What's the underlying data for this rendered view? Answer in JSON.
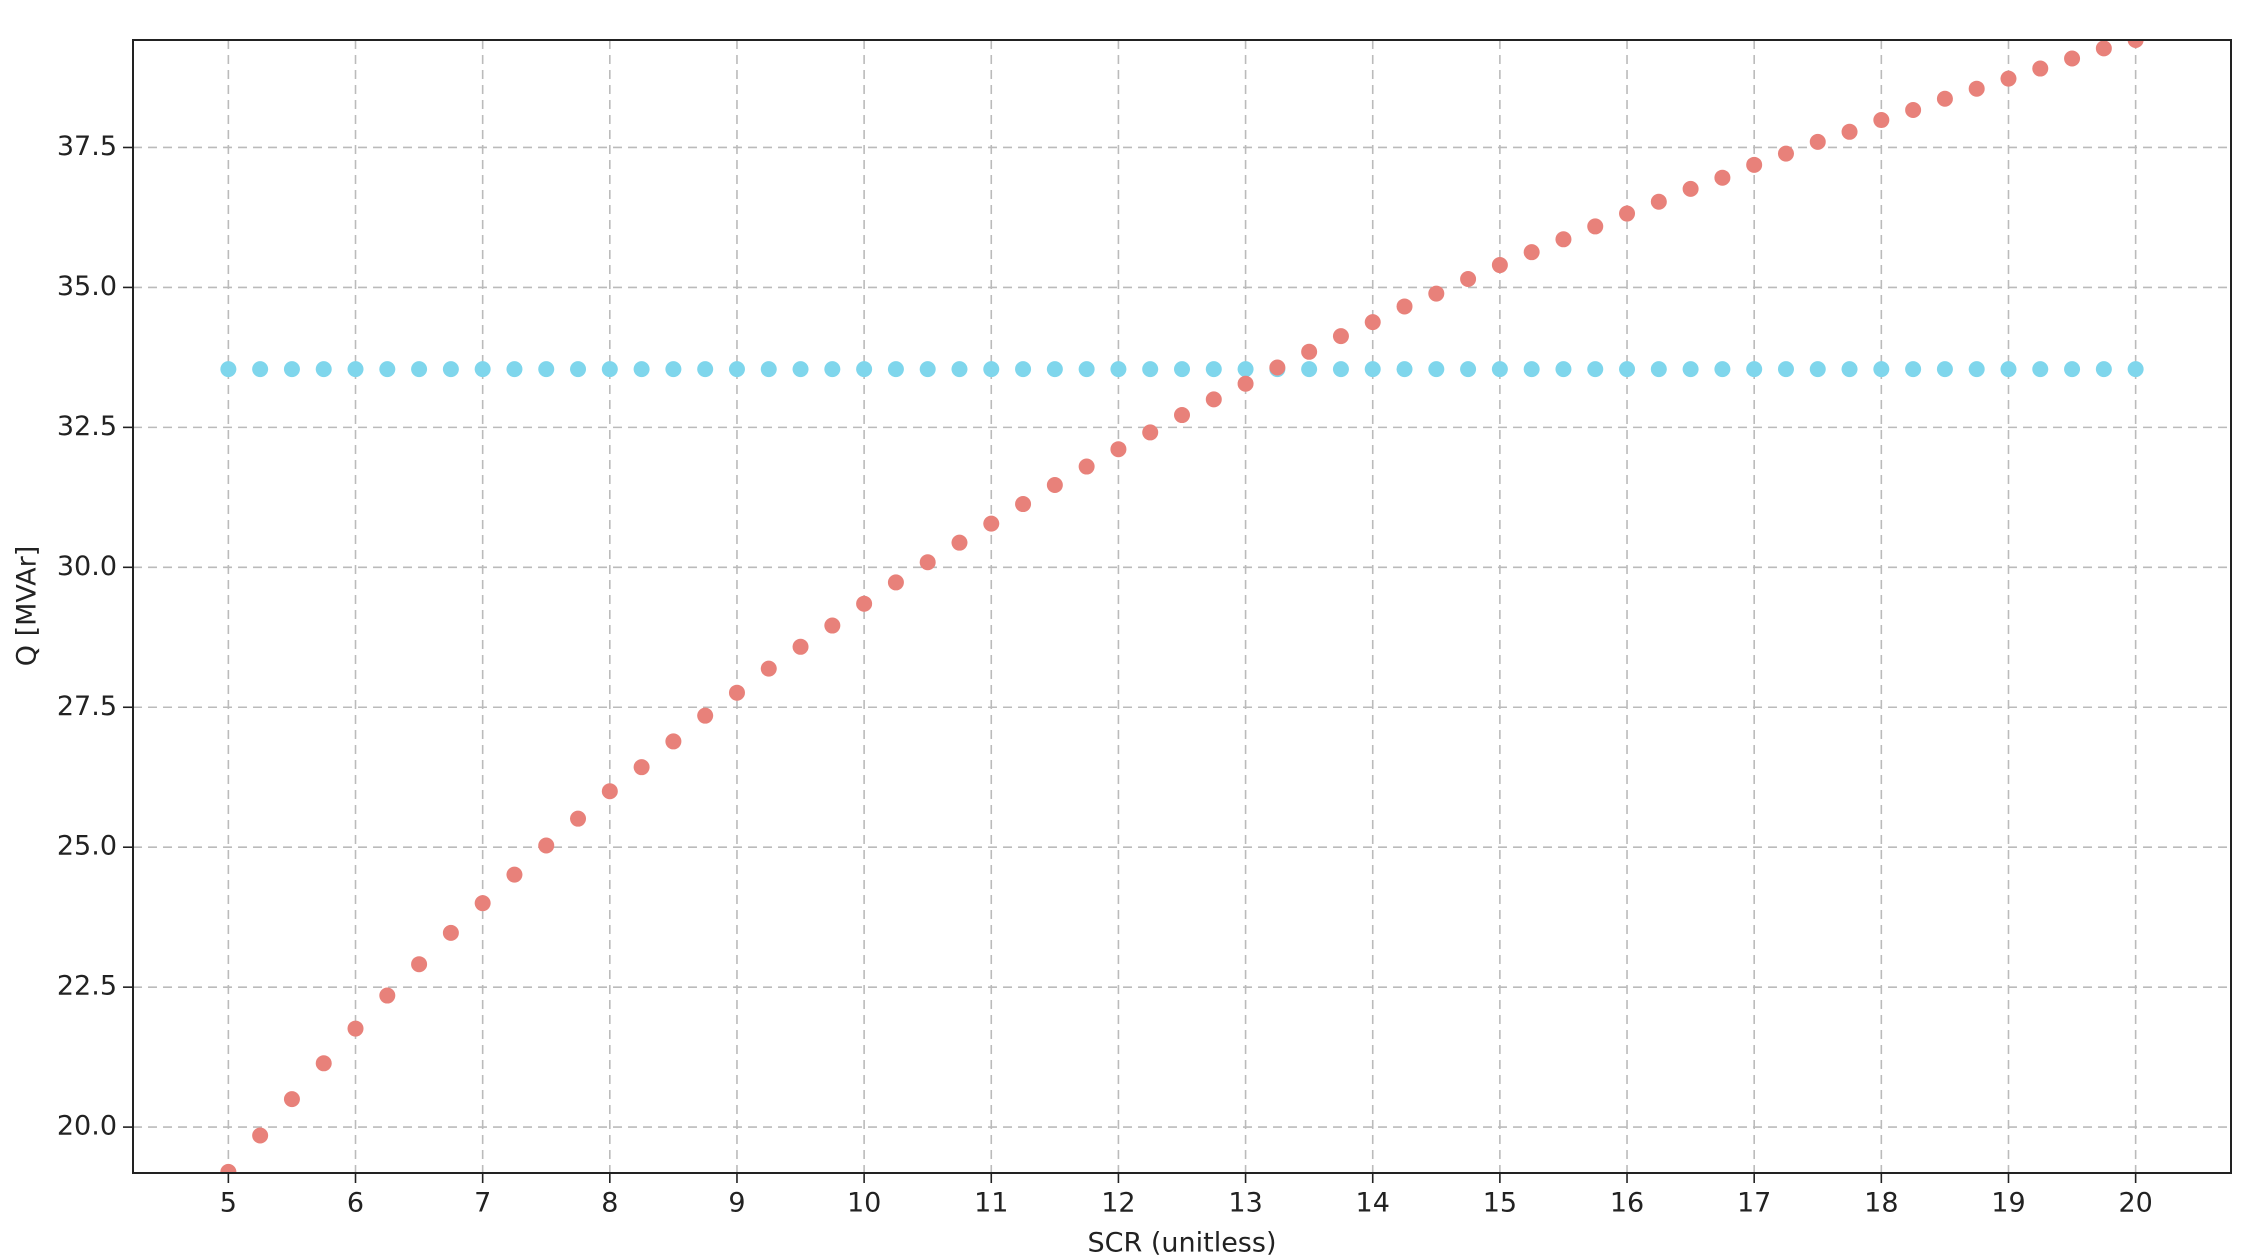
{
  "chart_data": {
    "type": "scatter",
    "x_label": "SCR (unitless)",
    "y_label": "Q [MVAr]",
    "x": [
      5,
      5.25,
      5.5,
      5.75,
      6,
      6.25,
      6.5,
      6.75,
      7,
      7.25,
      7.5,
      7.75,
      8,
      8.25,
      8.5,
      8.75,
      9,
      9.25,
      9.5,
      9.75,
      10,
      10.25,
      10.5,
      10.75,
      11,
      11.25,
      11.5,
      11.75,
      12,
      12.25,
      12.5,
      12.75,
      13,
      13.25,
      13.5,
      13.75,
      14,
      14.25,
      14.5,
      14.75,
      15,
      15.25,
      15.5,
      15.75,
      16,
      16.25,
      16.5,
      16.75,
      17,
      17.25,
      17.5,
      17.75,
      18,
      18.25,
      18.5,
      18.75,
      19,
      19.25,
      19.5,
      19.75,
      20
    ],
    "series": [
      {
        "color": "#7fd6ec",
        "values": [
          33.54,
          33.54,
          33.54,
          33.54,
          33.54,
          33.54,
          33.54,
          33.54,
          33.54,
          33.54,
          33.54,
          33.54,
          33.54,
          33.54,
          33.54,
          33.54,
          33.54,
          33.54,
          33.54,
          33.54,
          33.54,
          33.54,
          33.54,
          33.54,
          33.54,
          33.54,
          33.54,
          33.54,
          33.54,
          33.54,
          33.54,
          33.54,
          33.54,
          33.54,
          33.54,
          33.54,
          33.54,
          33.54,
          33.54,
          33.54,
          33.54,
          33.54,
          33.54,
          33.54,
          33.54,
          33.54,
          33.54,
          33.54,
          33.54,
          33.54,
          33.54,
          33.54,
          33.54,
          33.54,
          33.54,
          33.54,
          33.54,
          33.54,
          33.54,
          33.54,
          33.54
        ]
      },
      {
        "color": "#e8817a",
        "values": [
          19.2,
          19.85,
          20.5,
          21.14,
          21.76,
          22.35,
          22.91,
          23.47,
          24.0,
          24.51,
          25.03,
          25.51,
          26.0,
          26.43,
          26.89,
          27.35,
          27.76,
          28.19,
          28.58,
          28.96,
          29.35,
          29.73,
          30.09,
          30.44,
          30.78,
          31.13,
          31.47,
          31.8,
          32.11,
          32.41,
          32.72,
          33.0,
          33.28,
          33.57,
          33.85,
          34.13,
          34.38,
          34.66,
          34.89,
          35.15,
          35.4,
          35.63,
          35.86,
          36.09,
          36.32,
          36.53,
          36.76,
          36.96,
          37.19,
          37.39,
          37.6,
          37.78,
          37.99,
          38.17,
          38.37,
          38.55,
          38.73,
          38.91,
          39.09,
          39.27,
          39.42
        ]
      }
    ],
    "xlim": [
      4.25,
      20.75
    ],
    "ylim": [
      19.18,
      39.42
    ],
    "xticks": [
      5,
      6,
      7,
      8,
      9,
      10,
      11,
      12,
      13,
      14,
      15,
      16,
      17,
      18,
      19,
      20
    ],
    "yticks": [
      {
        "value": 20,
        "label": "20.0"
      },
      {
        "value": 22.5,
        "label": "22.5"
      },
      {
        "value": 25,
        "label": "25.0"
      },
      {
        "value": 27.5,
        "label": "27.5"
      },
      {
        "value": 30,
        "label": "30.0"
      },
      {
        "value": 32.5,
        "label": "32.5"
      },
      {
        "value": 35,
        "label": "35.0"
      },
      {
        "value": 37.5,
        "label": "37.5"
      }
    ],
    "grid": true
  }
}
